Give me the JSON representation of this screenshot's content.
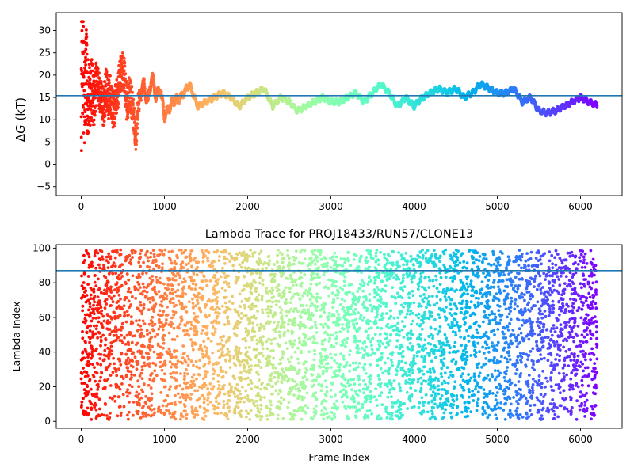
{
  "chart_data": [
    {
      "type": "scatter",
      "title": "",
      "xlabel": "",
      "ylabel": "ΔG (kT)",
      "ylabel_parts": {
        "delta": "Δ",
        "var": "G",
        "unit": " (kT)"
      },
      "xlim": [
        -300,
        6500
      ],
      "ylim": [
        -7,
        34
      ],
      "xticks": [
        0,
        1000,
        2000,
        3000,
        4000,
        5000,
        6000
      ],
      "xtick_labels": [
        "0",
        "1000",
        "2000",
        "3000",
        "4000",
        "5000",
        "6000"
      ],
      "yticks": [
        -5,
        0,
        5,
        10,
        15,
        20,
        25,
        30
      ],
      "ytick_labels": [
        "−5",
        "0",
        "5",
        "10",
        "15",
        "20",
        "25",
        "30"
      ],
      "hline": {
        "y": 15.4,
        "color": "#1f77b4"
      },
      "colormap": "rainbow",
      "color_mapping": "color encodes frame (red at start, violet at end)",
      "series_trend": {
        "x": [
          0,
          20,
          40,
          60,
          80,
          100,
          150,
          200,
          250,
          300,
          350,
          400,
          450,
          500,
          550,
          600,
          650,
          700,
          750,
          800,
          850,
          900,
          950,
          1000,
          1100,
          1200,
          1300,
          1400,
          1500,
          1600,
          1700,
          1800,
          1900,
          2000,
          2100,
          2200,
          2300,
          2400,
          2500,
          2600,
          2700,
          2800,
          2900,
          3000,
          3100,
          3200,
          3300,
          3400,
          3500,
          3600,
          3700,
          3800,
          3900,
          4000,
          4100,
          4200,
          4300,
          4400,
          4500,
          4600,
          4700,
          4800,
          4900,
          5000,
          5100,
          5200,
          5300,
          5400,
          5500,
          5600,
          5700,
          5800,
          5900,
          6000,
          6100,
          6200
        ],
        "y": [
          18,
          22,
          16,
          20,
          14,
          17,
          15,
          19,
          13,
          16,
          15,
          12,
          18,
          22,
          14,
          16,
          6,
          15,
          18,
          14,
          20,
          15,
          17,
          11,
          14,
          15,
          18,
          13,
          14,
          15,
          16,
          15,
          13,
          15,
          16,
          17,
          13,
          15,
          14,
          12,
          13,
          14,
          15,
          14,
          14,
          15,
          16,
          14,
          16,
          18,
          16,
          13,
          15,
          13,
          15,
          16,
          17,
          16,
          17,
          15,
          16,
          18,
          17,
          16,
          16,
          17,
          14,
          15,
          12,
          11.5,
          12,
          13,
          14,
          15,
          14,
          13.3
        ]
      },
      "series_spread": {
        "x": [
          0,
          100,
          200,
          300,
          400,
          500,
          600,
          700,
          800,
          900,
          1000,
          1200,
          1400,
          6200
        ],
        "halfwidth": [
          14,
          8,
          4,
          5,
          4,
          4,
          4,
          3,
          2.5,
          2,
          2,
          1.5,
          1,
          1
        ]
      },
      "n_points": 6200,
      "seed": 7
    },
    {
      "type": "scatter",
      "title": "Lambda Trace for PROJ18433/RUN57/CLONE13",
      "xlabel": "Frame Index",
      "ylabel": "Lambda Index",
      "xlim": [
        -300,
        6500
      ],
      "ylim": [
        -4,
        102
      ],
      "xticks": [
        0,
        1000,
        2000,
        3000,
        4000,
        5000,
        6000
      ],
      "xtick_labels": [
        "0",
        "1000",
        "2000",
        "3000",
        "4000",
        "5000",
        "6000"
      ],
      "yticks": [
        0,
        20,
        40,
        60,
        80,
        100
      ],
      "ytick_labels": [
        "0",
        "20",
        "40",
        "60",
        "80",
        "100"
      ],
      "hline": {
        "y": 87,
        "color": "#1f77b4"
      },
      "colormap": "rainbow",
      "color_mapping": "color encodes frame (red at start, violet at end)",
      "lambda_range": [
        1,
        99
      ],
      "sweep_period_frames": 130,
      "n_points": 6200,
      "seed": 11
    }
  ],
  "colors": {
    "hline": "#1f77b4",
    "axes": "#000000",
    "background": "#ffffff",
    "rainbow_stops": [
      "#8000ff",
      "#2adddd",
      "#d4dd80",
      "#ff0000"
    ]
  }
}
